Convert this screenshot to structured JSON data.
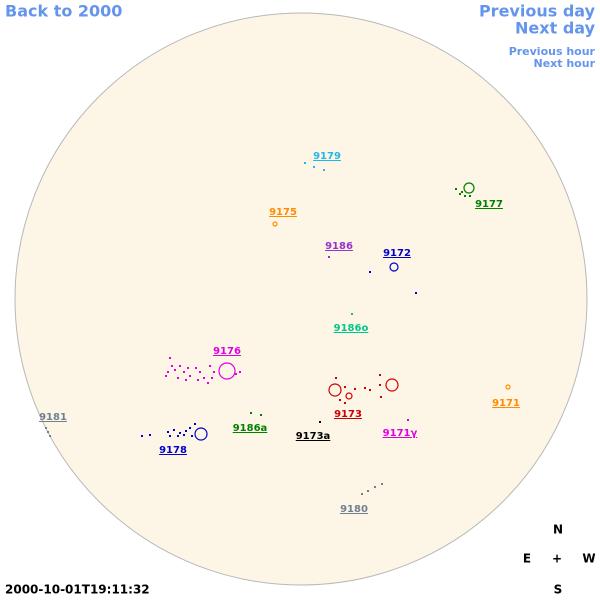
{
  "nav": {
    "back": "Back to 2000",
    "previous_day": "Previous day",
    "next_day": "Next day",
    "previous_hour": "Previous hour",
    "next_hour": "Next hour"
  },
  "regions": [
    {
      "label": "9179",
      "color": "#1fb8e8"
    },
    {
      "label": "9177",
      "color": "#008000"
    },
    {
      "label": "9175",
      "color": "#ff8c00"
    },
    {
      "label": "9186",
      "color": "#9932cc"
    },
    {
      "label": "9172",
      "color": "#0000cd"
    },
    {
      "label": "9186o",
      "color": "#00c88c"
    },
    {
      "label": "9176",
      "color": "#e000e0"
    },
    {
      "label": "9171",
      "color": "#ff8c00"
    },
    {
      "label": "9181",
      "color": "#708090"
    },
    {
      "label": "9173",
      "color": "#cc0000"
    },
    {
      "label": "9186a",
      "color": "#008000"
    },
    {
      "label": "9173a",
      "color": "#000000"
    },
    {
      "label": "9171γ",
      "color": "#e000e0"
    },
    {
      "label": "9178",
      "color": "#0000cd"
    },
    {
      "label": "9180",
      "color": "#708090"
    }
  ],
  "compass": {
    "north": "N",
    "east": "E",
    "center": "+",
    "west": "W",
    "south": "S"
  },
  "timestamp": "2000-10-01T19:11:32"
}
